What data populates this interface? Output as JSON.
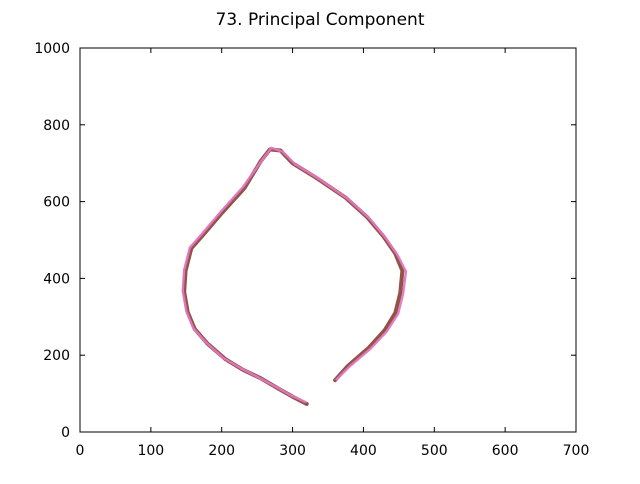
{
  "chart_data": {
    "type": "line",
    "title": "73. Principal Component",
    "xlabel": "",
    "ylabel": "",
    "xlim": [
      0,
      700
    ],
    "ylim": [
      0,
      1000
    ],
    "x_ticks": [
      0,
      100,
      200,
      300,
      400,
      500,
      600,
      700
    ],
    "y_ticks": [
      0,
      200,
      400,
      600,
      800,
      1000
    ],
    "grid": false,
    "legend": "none",
    "series": [
      {
        "color": "#8b4a3c",
        "points": [
          [
            320,
            73
          ],
          [
            300,
            92
          ],
          [
            280,
            113
          ],
          [
            255,
            140
          ],
          [
            230,
            162
          ],
          [
            205,
            190
          ],
          [
            180,
            230
          ],
          [
            162,
            268
          ],
          [
            152,
            312
          ],
          [
            147,
            365
          ],
          [
            149,
            420
          ],
          [
            157,
            478
          ],
          [
            176,
            518
          ],
          [
            200,
            570
          ],
          [
            232,
            635
          ],
          [
            255,
            705
          ],
          [
            268,
            736
          ],
          [
            283,
            733
          ],
          [
            300,
            700
          ],
          [
            335,
            660
          ],
          [
            375,
            610
          ],
          [
            405,
            560
          ],
          [
            428,
            510
          ],
          [
            445,
            465
          ],
          [
            455,
            420
          ],
          [
            452,
            362
          ],
          [
            445,
            310
          ],
          [
            430,
            265
          ],
          [
            408,
            220
          ],
          [
            378,
            172
          ],
          [
            360,
            135
          ]
        ]
      },
      {
        "color": "#e377c2",
        "points": [
          [
            318,
            78
          ],
          [
            298,
            95
          ],
          [
            278,
            116
          ],
          [
            252,
            142
          ],
          [
            228,
            165
          ],
          [
            202,
            193
          ],
          [
            178,
            233
          ],
          [
            160,
            270
          ],
          [
            150,
            315
          ],
          [
            145,
            368
          ],
          [
            147,
            422
          ],
          [
            155,
            480
          ],
          [
            174,
            520
          ],
          [
            198,
            572
          ],
          [
            230,
            638
          ],
          [
            257,
            708
          ],
          [
            270,
            740
          ],
          [
            286,
            730
          ],
          [
            303,
            698
          ],
          [
            338,
            658
          ],
          [
            378,
            607
          ],
          [
            408,
            557
          ],
          [
            431,
            506
          ],
          [
            448,
            461
          ],
          [
            460,
            418
          ],
          [
            456,
            360
          ],
          [
            449,
            308
          ],
          [
            433,
            262
          ],
          [
            410,
            217
          ],
          [
            380,
            170
          ],
          [
            362,
            137
          ]
        ]
      }
    ]
  }
}
